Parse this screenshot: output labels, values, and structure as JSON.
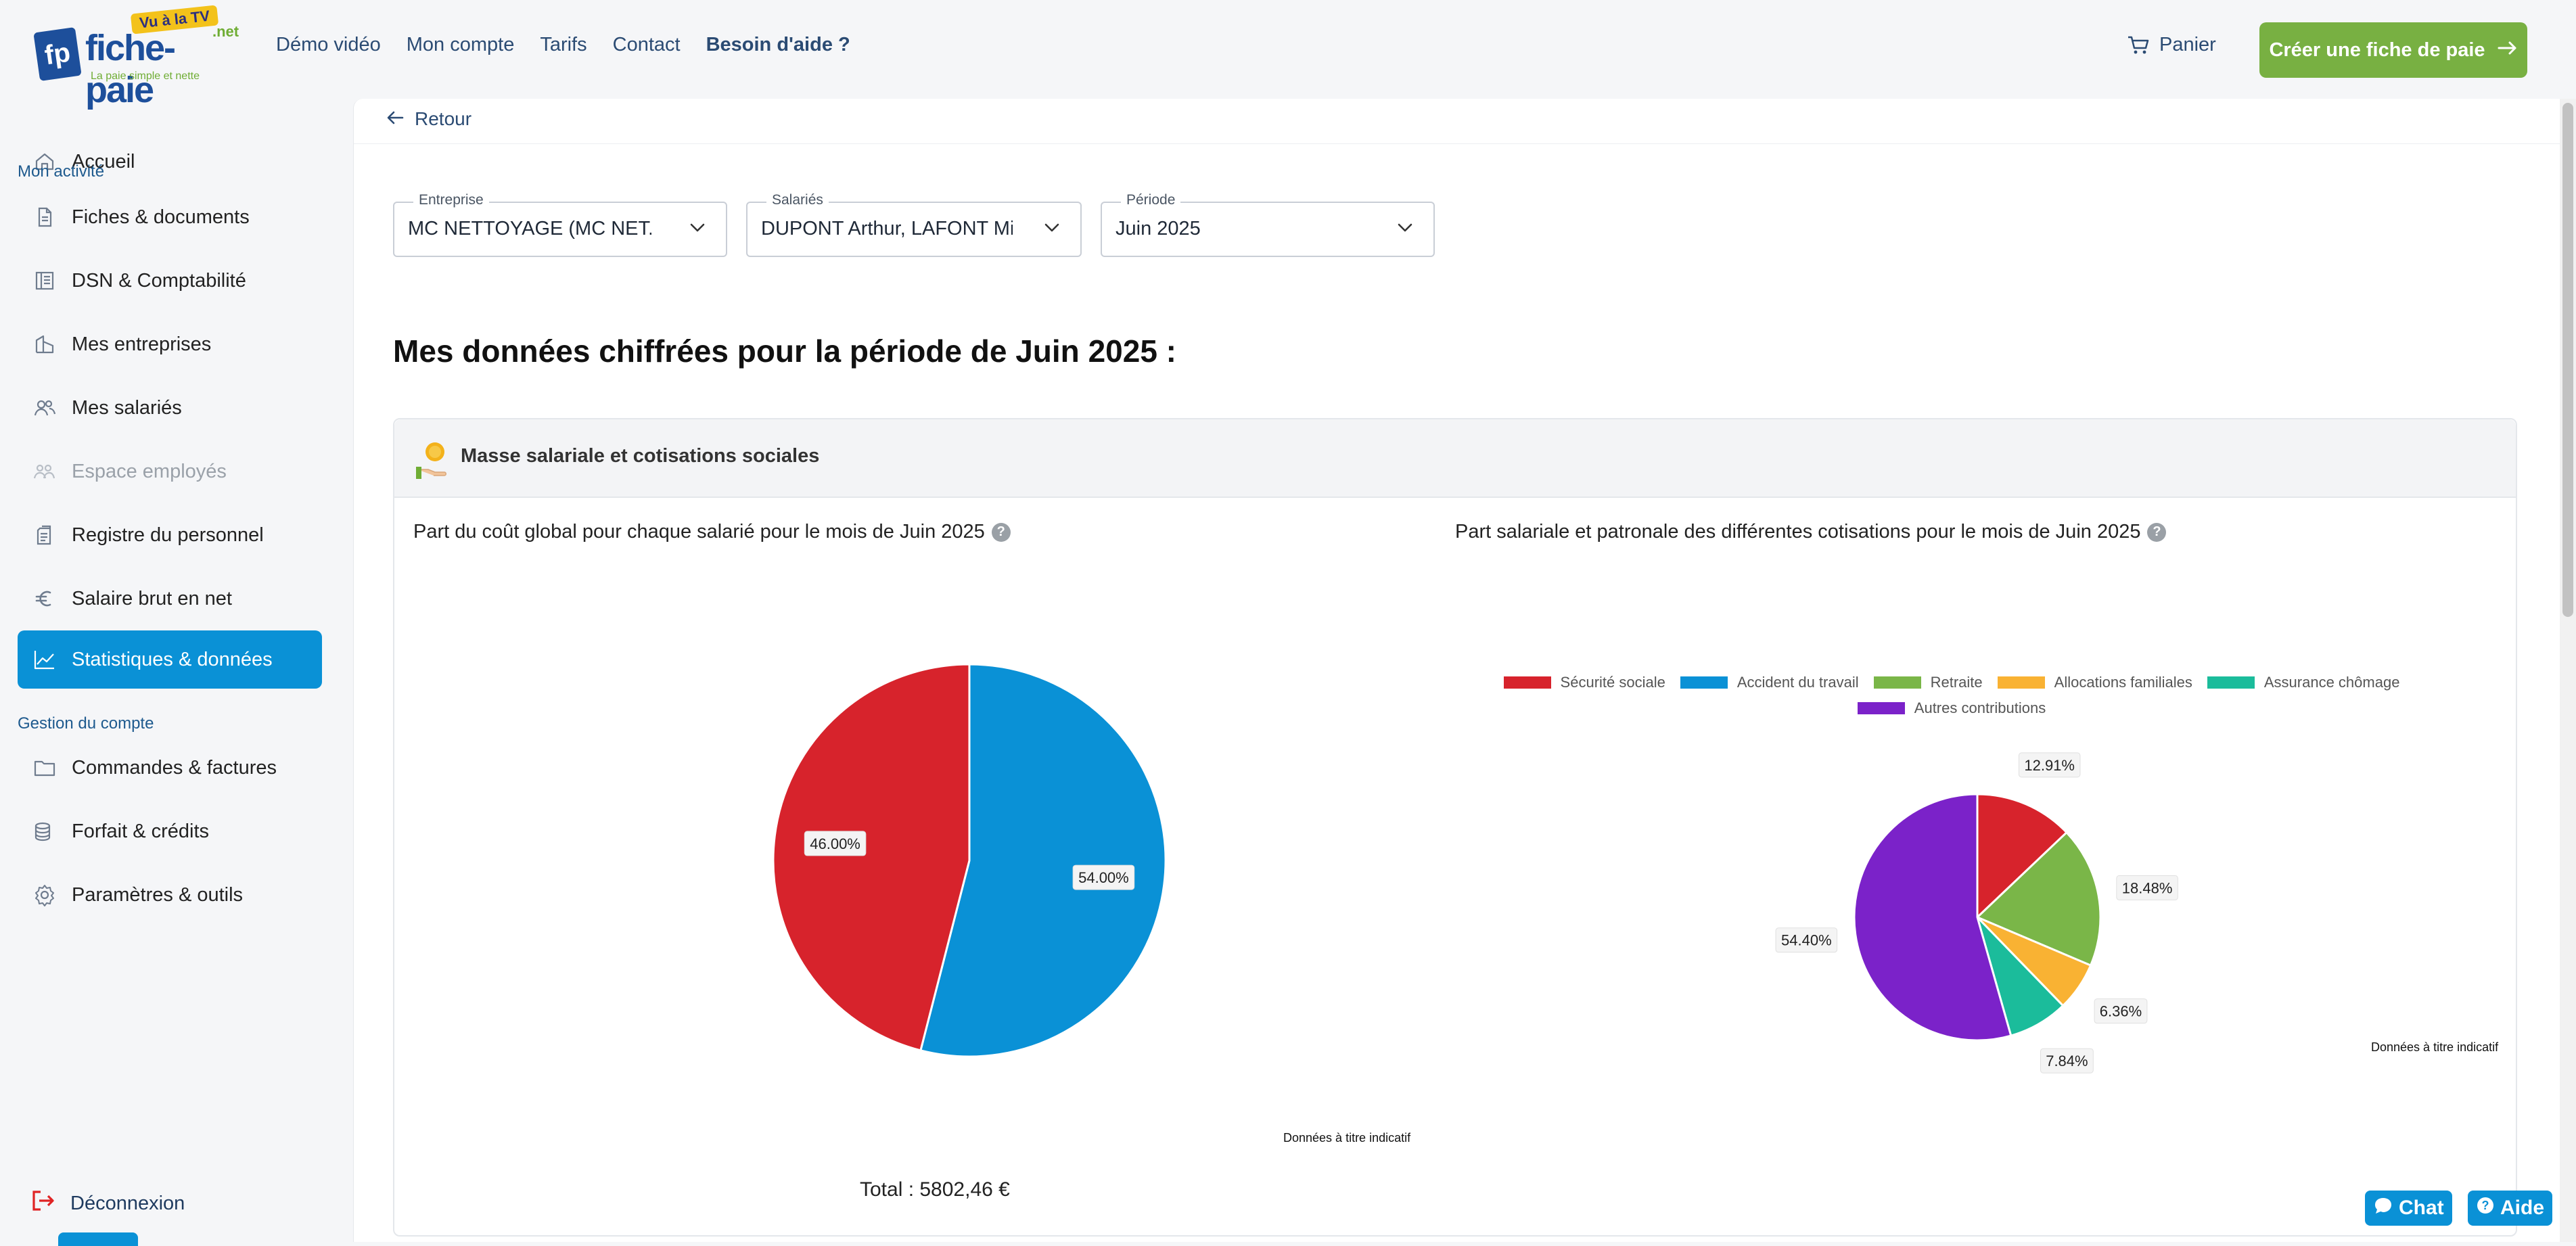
{
  "brand": {
    "name": "fiche-paie",
    "tld": ".net",
    "badge": "Vu à la TV",
    "tagline": "La paie simple et nette",
    "mark": "fp"
  },
  "topnav": {
    "links": [
      "Démo vidéo",
      "Mon compte",
      "Tarifs",
      "Contact",
      "Besoin d'aide ?"
    ],
    "cart_label": "Panier",
    "cta_label": "Créer une fiche de paie"
  },
  "sidebar": {
    "home": "Accueil",
    "section_activity": "Mon activité",
    "items_activity": [
      {
        "label": "Fiches & documents",
        "icon": "document-icon"
      },
      {
        "label": "DSN & Comptabilité",
        "icon": "ledger-icon"
      },
      {
        "label": "Mes entreprises",
        "icon": "building-icon"
      },
      {
        "label": "Mes salariés",
        "icon": "users-icon"
      },
      {
        "label": "Espace employés",
        "icon": "team-icon",
        "disabled": true
      },
      {
        "label": "Registre du personnel",
        "icon": "register-icon"
      },
      {
        "label": "Salaire brut en net",
        "icon": "euro-icon"
      },
      {
        "label": "Statistiques & données",
        "icon": "chart-line-icon",
        "active": true
      }
    ],
    "section_account": "Gestion du compte",
    "items_account": [
      {
        "label": "Commandes & factures",
        "icon": "folder-icon"
      },
      {
        "label": "Forfait & crédits",
        "icon": "coins-icon"
      },
      {
        "label": "Paramètres & outils",
        "icon": "settings-icon"
      }
    ],
    "logout": "Déconnexion"
  },
  "main": {
    "back_label": "Retour",
    "filters": {
      "company": {
        "label": "Entreprise",
        "value": "MC NETTOYAGE (MC NET..."
      },
      "employees": {
        "label": "Salariés",
        "value": "DUPONT Arthur, LAFONT Mi"
      },
      "period": {
        "label": "Période",
        "value": "Juin 2025"
      }
    },
    "page_title": "Mes données chiffrées pour la période de Juin 2025 :",
    "card_title": "Masse salariale et cotisations sociales",
    "left_chart_title": "Part du coût global pour chaque salarié pour le mois de Juin 2025",
    "right_chart_title": "Part salariale et patronale des différentes cotisations pour le mois de Juin 2025",
    "disclaimer": "Données à titre indicatif",
    "total": "Total : 5802,46 €"
  },
  "chart_data": [
    {
      "type": "pie",
      "title": "Part du coût global pour chaque salarié pour le mois de Juin 2025",
      "slices": [
        {
          "label": "54.00%",
          "value": 54.0,
          "color": "#0a91d6"
        },
        {
          "label": "46.00%",
          "value": 46.0,
          "color": "#d7232c"
        }
      ],
      "legend": "none"
    },
    {
      "type": "pie",
      "title": "Part salariale et patronale des différentes cotisations pour le mois de Juin 2025",
      "legend_position": "top",
      "series": [
        {
          "name": "Sécurité sociale",
          "value": 12.91,
          "label": "12.91%",
          "color": "#d7232c"
        },
        {
          "name": "Accident du travail",
          "value": 0,
          "label": "",
          "color": "#0a91d6"
        },
        {
          "name": "Retraite",
          "value": 18.48,
          "label": "18.48%",
          "color": "#7ab648"
        },
        {
          "name": "Allocations familiales",
          "value": 6.36,
          "label": "6.36%",
          "color": "#f9b233"
        },
        {
          "name": "Assurance chômage",
          "value": 7.84,
          "label": "7.84%",
          "color": "#1bbc9b"
        },
        {
          "name": "Autres contributions",
          "value": 54.4,
          "label": "54.40%",
          "color": "#7b22c9"
        }
      ]
    }
  ],
  "floating": {
    "chat_label": "Chat",
    "help_label": "Aide"
  }
}
